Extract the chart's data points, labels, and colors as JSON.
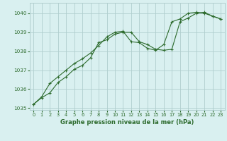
{
  "line1_x": [
    0,
    1,
    2,
    3,
    4,
    5,
    6,
    7,
    8,
    9,
    10,
    11,
    12,
    13,
    14,
    15,
    16,
    17,
    18,
    19,
    20,
    21,
    22,
    23
  ],
  "line1_y": [
    1035.2,
    1035.55,
    1035.8,
    1036.35,
    1036.65,
    1037.05,
    1037.25,
    1037.65,
    1038.45,
    1038.6,
    1038.9,
    1039.0,
    1039.0,
    1038.5,
    1038.35,
    1038.1,
    1038.05,
    1038.1,
    1039.55,
    1039.75,
    1040.0,
    1040.05,
    1039.85,
    1039.7
  ],
  "line2_x": [
    0,
    1,
    2,
    3,
    4,
    5,
    6,
    7,
    8,
    9,
    10,
    11,
    12,
    13,
    14,
    15,
    16,
    17,
    18,
    19,
    20,
    21,
    22,
    23
  ],
  "line2_y": [
    1035.2,
    1035.6,
    1036.3,
    1036.65,
    1037.0,
    1037.35,
    1037.6,
    1037.9,
    1038.3,
    1038.75,
    1039.0,
    1039.05,
    1038.5,
    1038.45,
    1038.15,
    1038.05,
    1038.35,
    1039.55,
    1039.7,
    1040.0,
    1040.05,
    1040.0,
    1039.85,
    1039.7
  ],
  "line_color": "#2d6b2d",
  "bg_color": "#d9f0f0",
  "grid_color": "#b0cece",
  "xlabel": "Graphe pression niveau de la mer (hPa)",
  "ylim": [
    1034.9,
    1040.55
  ],
  "xlim": [
    -0.5,
    23.5
  ],
  "yticks": [
    1035,
    1036,
    1037,
    1038,
    1039,
    1040
  ],
  "xticks": [
    0,
    1,
    2,
    3,
    4,
    5,
    6,
    7,
    8,
    9,
    10,
    11,
    12,
    13,
    14,
    15,
    16,
    17,
    18,
    19,
    20,
    21,
    22,
    23
  ]
}
